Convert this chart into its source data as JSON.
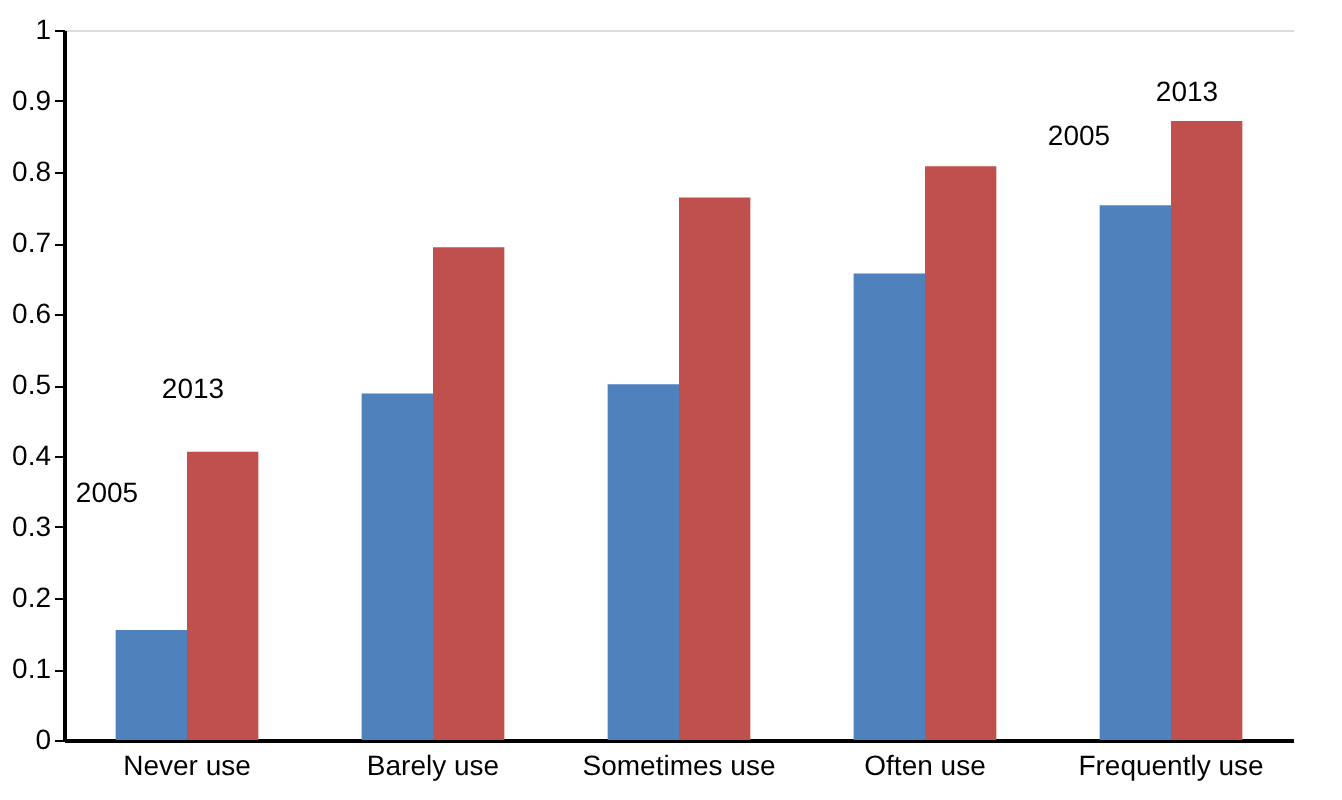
{
  "chart_data": {
    "type": "bar",
    "categories": [
      "Never use",
      "Barely use",
      "Sometimes use",
      "Often use",
      "Frequently use"
    ],
    "series": [
      {
        "color": "#4f81bd",
        "values": [
          0.155,
          0.488,
          0.501,
          0.657,
          0.753
        ]
      },
      {
        "color": "#c0504d",
        "values": [
          0.406,
          0.694,
          0.764,
          0.808,
          0.872
        ]
      }
    ],
    "grid": false,
    "ylim": [
      0,
      1
    ],
    "yticks": [
      0,
      0.1,
      0.2,
      0.3,
      0.4,
      0.5,
      0.6,
      0.7,
      0.8,
      0.9,
      1
    ],
    "annotations": [
      "2005",
      "2013",
      "2005",
      "2013"
    ]
  }
}
